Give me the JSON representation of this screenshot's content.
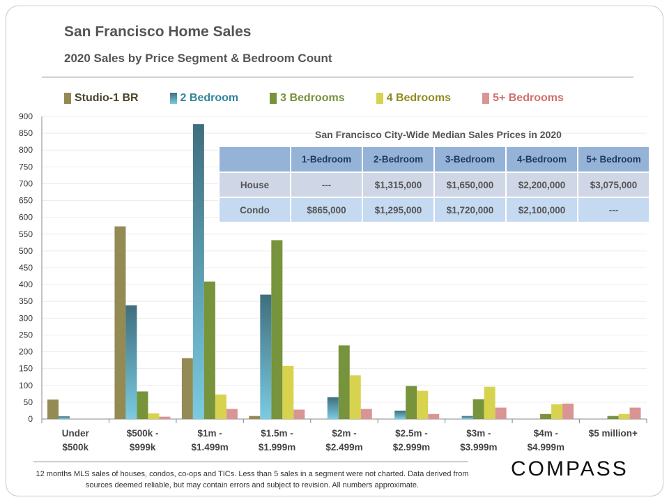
{
  "title": "San Francisco Home Sales",
  "subtitle": "2020 Sales by Price Segment & Bedroom Count",
  "chart_data": {
    "type": "bar",
    "categories": [
      [
        "Under",
        "$500k"
      ],
      [
        "$500k -",
        "$999k"
      ],
      [
        "$1m -",
        "$1.499m"
      ],
      [
        "$1.5m -",
        "$1.999m"
      ],
      [
        "$2m -",
        "$2.499m"
      ],
      [
        "$2.5m -",
        "$2.999m"
      ],
      [
        "$3m -",
        "$3.999m"
      ],
      [
        "$4m -",
        "$4.999m"
      ],
      [
        "$5 million+",
        ""
      ]
    ],
    "ylim": [
      0,
      900
    ],
    "ytick_step": 50,
    "grid": true,
    "legend_placement": "top",
    "series": [
      {
        "name": "Studio-1 BR",
        "color": "#948a54",
        "text_color": "#4a452a",
        "values": [
          58,
          573,
          181,
          9,
          null,
          null,
          null,
          null,
          null
        ]
      },
      {
        "name": "2 Bedroom",
        "color": "#4bacc6",
        "text_color": "#31859c",
        "values": [
          8,
          338,
          877,
          370,
          65,
          25,
          9,
          null,
          null
        ]
      },
      {
        "name": "3 Bedrooms",
        "color": "#77933c",
        "text_color": "#77933c",
        "values": [
          null,
          82,
          409,
          532,
          219,
          98,
          59,
          15,
          9
        ]
      },
      {
        "name": "4 Bedrooms",
        "color": "#d7d34f",
        "text_color": "#8f8d1f",
        "values": [
          null,
          17,
          73,
          158,
          130,
          84,
          96,
          44,
          15
        ]
      },
      {
        "name": "5+ Bedrooms",
        "color": "#d99594",
        "text_color": "#d07070",
        "values": [
          null,
          7,
          30,
          28,
          30,
          15,
          34,
          46,
          34
        ]
      }
    ]
  },
  "table": {
    "title": "San Francisco City-Wide Median Sales Prices in 2020",
    "headers": [
      "",
      "1-Bedroom",
      "2-Bedroom",
      "3-Bedroom",
      "4-Bedroom",
      "5+ Bedroom"
    ],
    "rows": [
      [
        "House",
        "---",
        "$1,315,000",
        "$1,650,000",
        "$2,200,000",
        "$3,075,000"
      ],
      [
        "Condo",
        "$865,000",
        "$1,295,000",
        "$1,720,000",
        "$2,100,000",
        "---"
      ]
    ]
  },
  "footnote": "12 months MLS sales of houses, condos, co-ops and TICs. Less than 5 sales in a segment were not charted. Data derived from sources deemed reliable, but may contain errors and subject to revision. All numbers approximate.",
  "logo": "COMPASS"
}
